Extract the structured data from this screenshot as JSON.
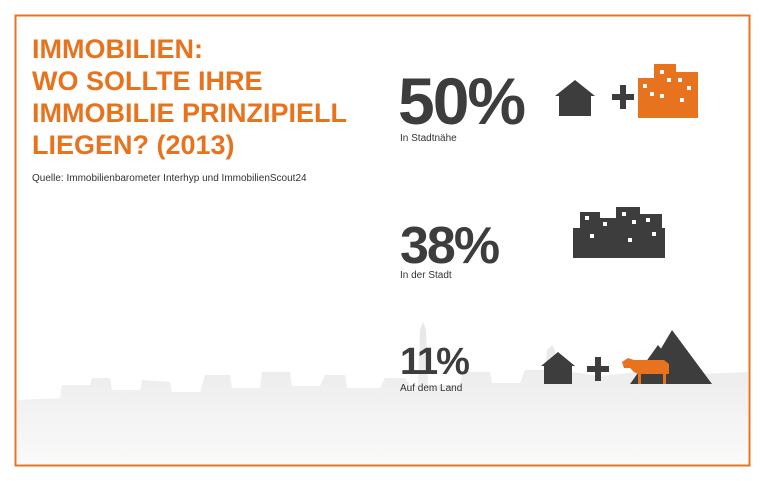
{
  "header": {
    "title_lines": [
      "IMMOBILIEN:",
      "WO SOLLTE IHRE",
      "IMMOBILIE PRINZIPIELL",
      "LIEGEN? (2013)"
    ],
    "source": "Quelle: Immobilienbarometer Interhyp und ImmobilienScout24"
  },
  "items": [
    {
      "value": "50%",
      "label": "In Stadtnähe"
    },
    {
      "value": "38%",
      "label": "In der Stadt"
    },
    {
      "value": "11%",
      "label": "Auf dem Land"
    }
  ]
}
